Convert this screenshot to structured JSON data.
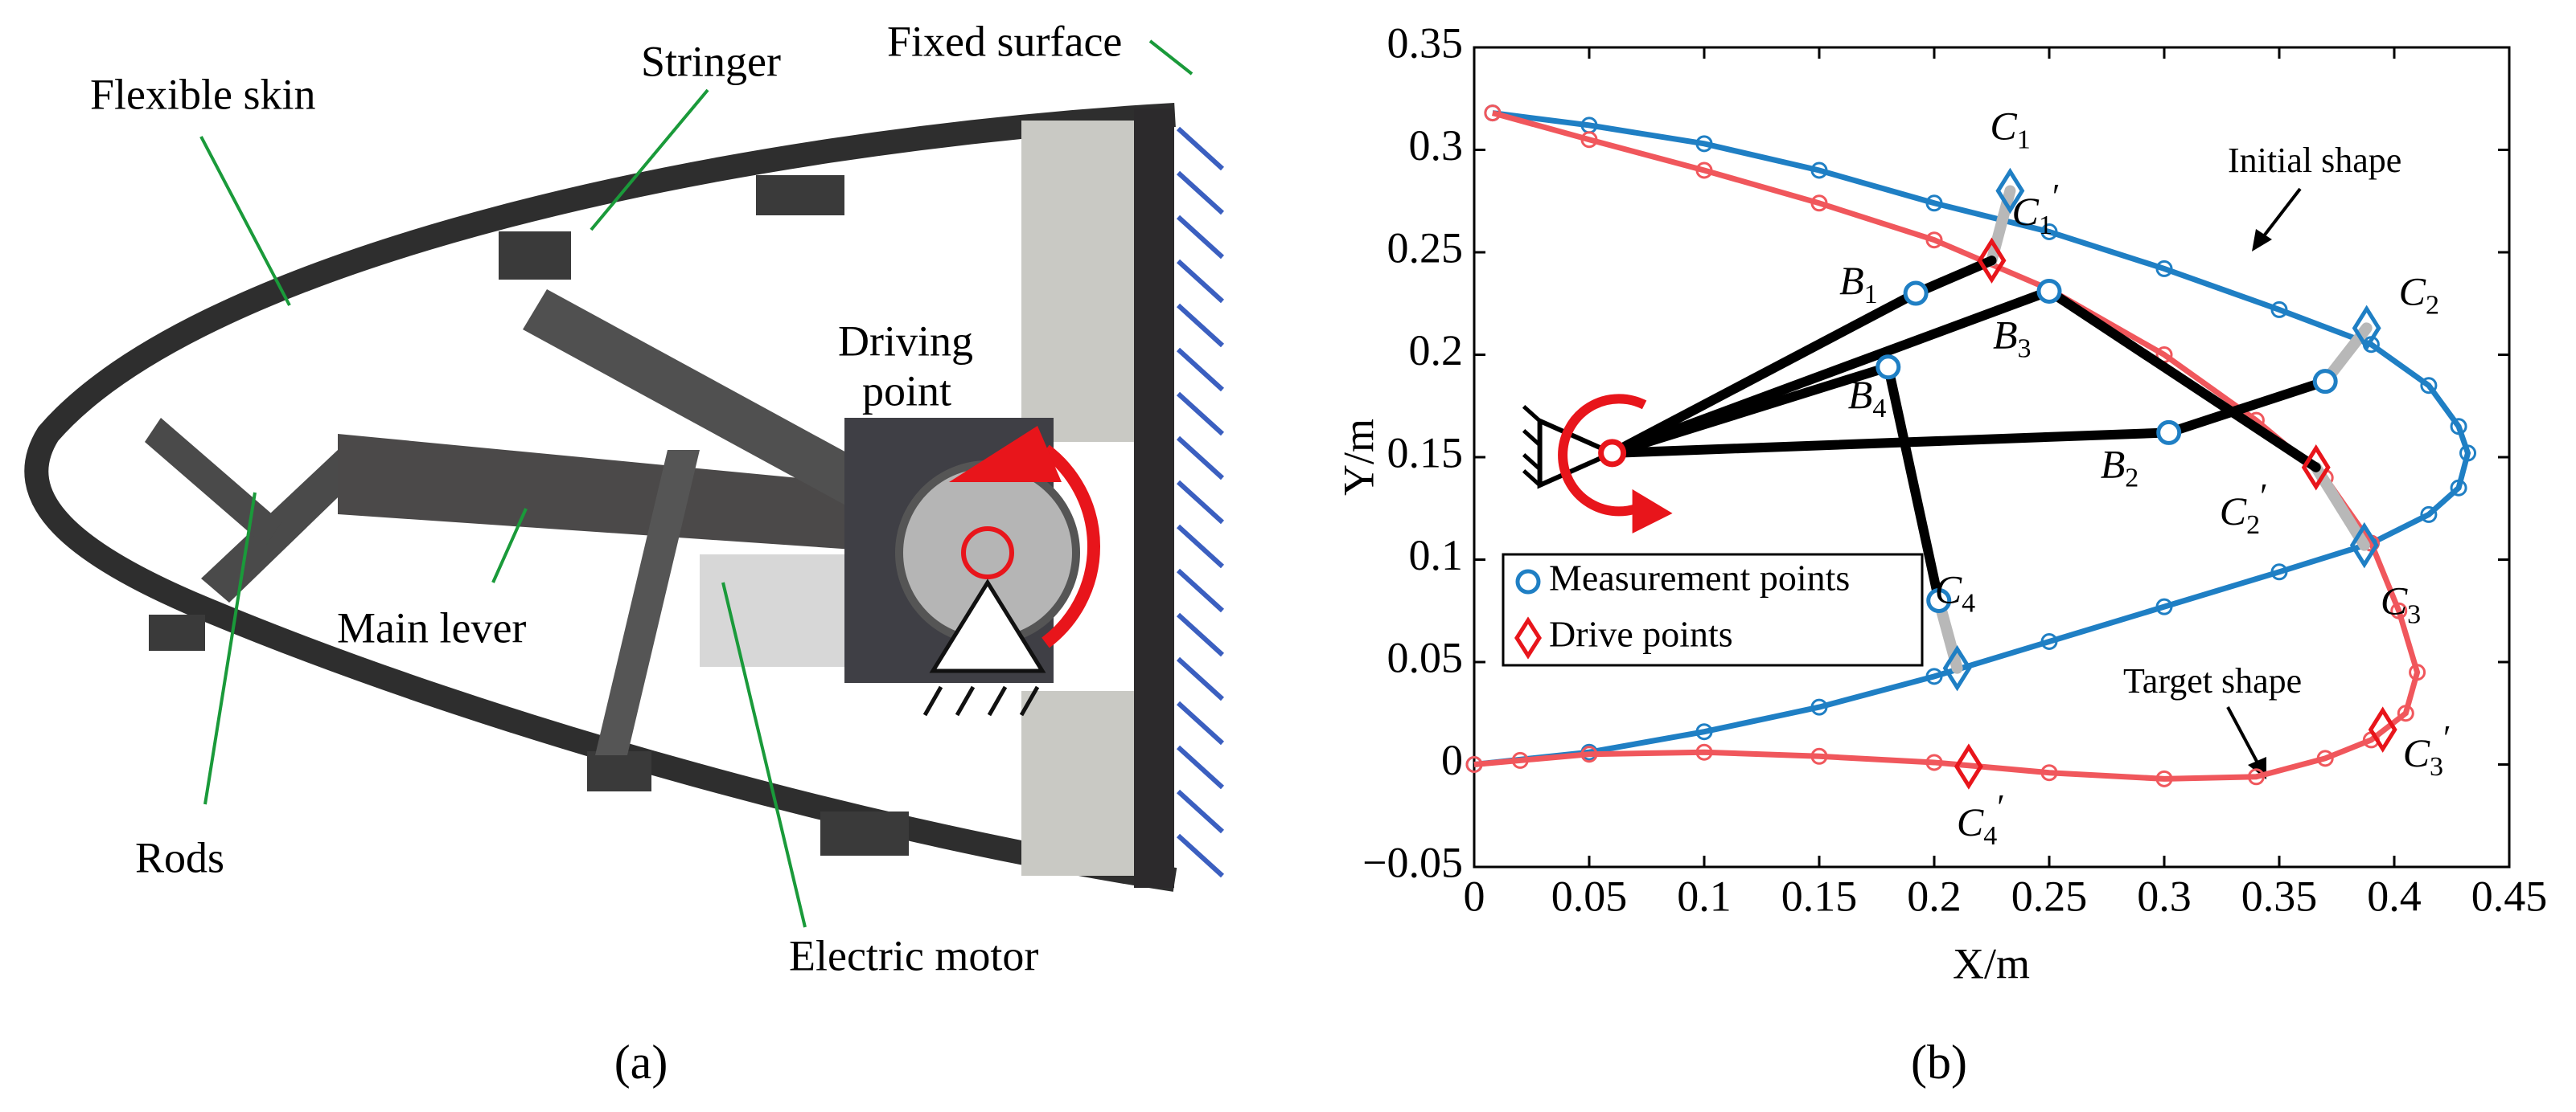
{
  "panel_a": {
    "labels": {
      "flexible_skin": "Flexible skin",
      "stringer": "Stringer",
      "fixed_surface": "Fixed surface",
      "driving_point": [
        "Driving",
        "point"
      ],
      "main_lever": "Main lever",
      "rods": "Rods",
      "electric_motor": "Electric motor"
    },
    "caption": "(a)"
  },
  "chart_data": {
    "type": "line",
    "xlabel": "X/m",
    "ylabel": "Y/m",
    "xlim": [
      0,
      0.45
    ],
    "ylim": [
      -0.05,
      0.35
    ],
    "xticks": [
      0,
      0.05,
      0.1,
      0.15,
      0.2,
      0.25,
      0.3,
      0.35,
      0.4,
      0.45
    ],
    "yticks": [
      {
        "value": -0.05,
        "label": "−0.05"
      },
      0,
      0.05,
      0.1,
      0.15,
      0.2,
      0.25,
      0.3,
      0.35
    ],
    "series": [
      {
        "name": "Initial shape",
        "color": "#1f7fc4",
        "x": [
          0.008,
          0.05,
          0.1,
          0.15,
          0.2,
          0.25,
          0.3,
          0.35,
          0.39,
          0.415,
          0.428,
          0.432,
          0.428,
          0.415,
          0.39,
          0.35,
          0.3,
          0.25,
          0.2,
          0.15,
          0.1,
          0.05,
          0
        ],
        "y": [
          0.318,
          0.312,
          0.303,
          0.29,
          0.274,
          0.26,
          0.242,
          0.222,
          0.205,
          0.185,
          0.165,
          0.152,
          0.135,
          0.122,
          0.108,
          0.094,
          0.077,
          0.06,
          0.043,
          0.028,
          0.016,
          0.006,
          0
        ]
      },
      {
        "name": "Target shape",
        "color": "#f0575c",
        "x": [
          0.008,
          0.05,
          0.1,
          0.15,
          0.2,
          0.25,
          0.3,
          0.34,
          0.37,
          0.39,
          0.402,
          0.41,
          0.405,
          0.39,
          0.37,
          0.34,
          0.3,
          0.25,
          0.2,
          0.15,
          0.1,
          0.05,
          0.02,
          0
        ],
        "y": [
          0.318,
          0.305,
          0.29,
          0.274,
          0.256,
          0.232,
          0.2,
          0.168,
          0.14,
          0.108,
          0.075,
          0.045,
          0.025,
          0.012,
          0.003,
          -0.006,
          -0.007,
          -0.004,
          0.001,
          0.004,
          0.006,
          0.005,
          0.002,
          0
        ]
      }
    ],
    "points": [
      {
        "x": 0.06,
        "y": 0.152,
        "marker": "pivot",
        "color": "#e8151b"
      },
      {
        "x": 0.192,
        "y": 0.23,
        "marker": "circle",
        "color": "#1f7fc4",
        "label": "B",
        "sub": "1"
      },
      {
        "x": 0.302,
        "y": 0.162,
        "marker": "circle",
        "color": "#1f7fc4",
        "label": "B",
        "sub": "2"
      },
      {
        "x": 0.25,
        "y": 0.231,
        "marker": "circle",
        "color": "#1f7fc4",
        "label": "B",
        "sub": "3"
      },
      {
        "x": 0.18,
        "y": 0.194,
        "marker": "circle",
        "color": "#1f7fc4",
        "label": "B",
        "sub": "4"
      },
      {
        "x": 0.202,
        "y": 0.08,
        "marker": "circle",
        "color": "#1f7fc4",
        "label": "C",
        "sub": "4"
      },
      {
        "x": 0.37,
        "y": 0.187,
        "marker": "circle",
        "color": "#1f7fc4"
      },
      {
        "x": 0.233,
        "y": 0.28,
        "marker": "diamond",
        "color": "#1f7fc4",
        "label": "C",
        "sub": "1"
      },
      {
        "x": 0.388,
        "y": 0.213,
        "marker": "diamond",
        "color": "#1f7fc4",
        "label": "C",
        "sub": "2"
      },
      {
        "x": 0.387,
        "y": 0.107,
        "marker": "diamond",
        "color": "#1f7fc4",
        "label": "C",
        "sub": "3"
      },
      {
        "x": 0.21,
        "y": 0.047,
        "marker": "diamond",
        "color": "#1f7fc4"
      },
      {
        "x": 0.225,
        "y": 0.246,
        "marker": "diamond",
        "color": "#e8151b",
        "label": "C",
        "sub": "1",
        "prime": "′"
      },
      {
        "x": 0.366,
        "y": 0.145,
        "marker": "diamond",
        "color": "#e8151b",
        "label": "C",
        "sub": "2",
        "prime": "′"
      },
      {
        "x": 0.395,
        "y": 0.017,
        "marker": "diamond",
        "color": "#e8151b",
        "label": "C",
        "sub": "3",
        "prime": "′"
      },
      {
        "x": 0.215,
        "y": -0.001,
        "marker": "diamond",
        "color": "#e8151b",
        "label": "C",
        "sub": "4",
        "prime": "′"
      }
    ],
    "legend": [
      {
        "label": "Measurement points",
        "marker": "circle",
        "color": "#1f7fc4"
      },
      {
        "label": "Drive points",
        "marker": "diamond",
        "color": "#e8151b"
      }
    ],
    "caption": "(b)"
  }
}
